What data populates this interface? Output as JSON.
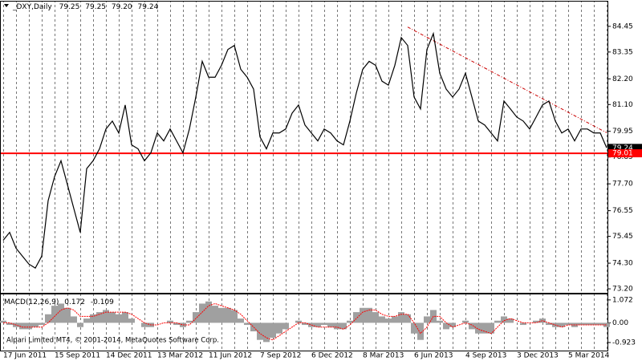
{
  "chart_data": [
    {
      "type": "line",
      "title": "_DXY,Daily",
      "header_values": [
        "79.25",
        "79.25",
        "79.20",
        "79.24"
      ],
      "categories": [
        "17 Jun 2011",
        null,
        null,
        null,
        null,
        null,
        null,
        null,
        "15 Sep 2011",
        null,
        null,
        null,
        null,
        null,
        null,
        null,
        "14 Dec 2011",
        null,
        null,
        null,
        null,
        null,
        null,
        null,
        "13 Mar 2012",
        null,
        null,
        null,
        null,
        null,
        null,
        null,
        "11 Jun 2012",
        null,
        null,
        null,
        null,
        null,
        null,
        null,
        "7 Sep 2012",
        null,
        null,
        null,
        null,
        null,
        null,
        null,
        "6 Dec 2012",
        null,
        null,
        null,
        null,
        null,
        null,
        null,
        "8 Mar 2013",
        null,
        null,
        null,
        null,
        null,
        null,
        null,
        "6 Jun 2013",
        null,
        null,
        null,
        null,
        null,
        null,
        null,
        "4 Sep 2013",
        null,
        null,
        null,
        null,
        null,
        null,
        null,
        "3 Dec 2013",
        null,
        null,
        null,
        null,
        null,
        null,
        null,
        "5 Mar 2014",
        null,
        null,
        null,
        null,
        null,
        null
      ],
      "values": [
        75.28,
        75.62,
        74.94,
        74.6,
        74.26,
        74.09,
        74.6,
        76.98,
        78.01,
        78.69,
        77.67,
        76.64,
        75.62,
        78.35,
        78.69,
        79.2,
        80.05,
        80.39,
        79.88,
        81.08,
        79.37,
        79.2,
        78.69,
        79.03,
        79.88,
        79.54,
        80.05,
        79.54,
        79.03,
        80.05,
        81.42,
        82.95,
        82.27,
        82.27,
        82.78,
        83.46,
        83.63,
        82.61,
        82.27,
        81.76,
        79.71,
        79.2,
        79.88,
        79.88,
        80.05,
        80.73,
        81.08,
        80.22,
        79.88,
        79.54,
        80.05,
        79.88,
        79.54,
        79.37,
        80.39,
        81.59,
        82.61,
        82.95,
        82.78,
        82.1,
        81.93,
        82.78,
        83.97,
        83.63,
        81.42,
        80.91,
        83.46,
        84.14,
        82.44,
        81.76,
        81.42,
        81.76,
        82.44,
        81.42,
        80.39,
        80.22,
        79.88,
        79.54,
        81.25,
        80.91,
        80.56,
        80.39,
        80.05,
        80.56,
        81.08,
        81.25,
        80.39,
        79.88,
        80.05,
        79.54,
        80.05,
        80.05,
        79.88,
        79.88,
        79.24
      ],
      "color": "#000000",
      "ylim": [
        73.03,
        85.51
      ],
      "yticks": [
        84.45,
        83.35,
        {
          "value": 82.2,
          "label": "82.20"
        },
        {
          "value": 81.1,
          "label": "81.10"
        },
        79.95,
        78.85,
        {
          "value": 77.7,
          "label": "77.70"
        },
        76.55,
        75.45,
        {
          "value": 74.3,
          "label": "74.30"
        },
        {
          "value": 73.2,
          "label": "73.20"
        }
      ],
      "last_price": 79.24,
      "hline": {
        "value": 79.01,
        "color": "#ff0000"
      },
      "trendline": [
        84.42,
        79.89
      ],
      "trendline_color": "#cc0000",
      "copyright": "Alpari Limited MT4, © 2001-2014, MetaQuotes Software Corp."
    },
    {
      "type": "bar",
      "title": "MACD(12,26,9)",
      "readout": [
        0.172,
        -0.109
      ],
      "values": [
        0.1,
        -0.1,
        -0.2,
        -0.3,
        -0.3,
        -0.2,
        -0.1,
        0.4,
        0.8,
        0.9,
        0.7,
        0.3,
        -0.2,
        0.2,
        0.4,
        0.5,
        0.6,
        0.5,
        0.4,
        0.5,
        0.2,
        0.0,
        -0.2,
        -0.2,
        0.0,
        0.0,
        0.1,
        -0.1,
        -0.2,
        0.1,
        0.5,
        0.9,
        1.0,
        0.8,
        0.7,
        0.7,
        0.6,
        0.2,
        -0.1,
        -0.4,
        -0.8,
        -0.9,
        -0.7,
        -0.5,
        -0.3,
        0.0,
        0.1,
        -0.1,
        -0.2,
        -0.2,
        -0.1,
        -0.2,
        -0.3,
        -0.3,
        0.1,
        0.5,
        0.7,
        0.7,
        0.5,
        0.3,
        0.2,
        0.3,
        0.5,
        0.4,
        -0.5,
        -0.8,
        0.3,
        0.6,
        0.1,
        -0.3,
        -0.2,
        0.0,
        0.1,
        -0.3,
        -0.5,
        -0.5,
        -0.5,
        0.1,
        0.3,
        0.2,
        0.0,
        -0.1,
        0.0,
        0.1,
        0.2,
        -0.1,
        -0.2,
        -0.2,
        -0.1,
        -0.2,
        -0.1,
        -0.1,
        -0.1,
        -0.1,
        -0.2
      ],
      "signal": [
        0.0,
        0.0,
        -0.1,
        -0.2,
        -0.2,
        -0.2,
        -0.2,
        0.0,
        0.3,
        0.6,
        0.7,
        0.6,
        0.3,
        0.3,
        0.3,
        0.4,
        0.5,
        0.5,
        0.5,
        0.5,
        0.4,
        0.2,
        0.0,
        -0.1,
        -0.1,
        0.0,
        0.0,
        0.0,
        -0.1,
        -0.1,
        0.2,
        0.5,
        0.8,
        0.9,
        0.8,
        0.7,
        0.6,
        0.4,
        0.1,
        -0.2,
        -0.5,
        -0.7,
        -0.8,
        -0.6,
        -0.4,
        -0.2,
        0.0,
        0.0,
        -0.1,
        -0.2,
        -0.2,
        -0.2,
        -0.2,
        -0.3,
        -0.1,
        0.2,
        0.5,
        0.6,
        0.6,
        0.4,
        0.3,
        0.3,
        0.4,
        0.4,
        0.0,
        -0.5,
        -0.2,
        0.3,
        0.3,
        0.0,
        -0.2,
        -0.1,
        0.0,
        -0.1,
        -0.3,
        -0.4,
        -0.5,
        -0.2,
        0.1,
        0.2,
        0.1,
        0.0,
        0.0,
        0.0,
        0.1,
        0.0,
        -0.1,
        -0.2,
        -0.1,
        -0.1,
        -0.1,
        -0.1,
        -0.1,
        -0.1,
        -0.1
      ],
      "color": "#a0a0a0",
      "signal_color": "#ff0000",
      "ylim": [
        -1.3,
        1.33
      ],
      "yticks": [
        1.072,
        {
          "value": 0,
          "label": "0.00"
        },
        -0.923
      ]
    }
  ]
}
